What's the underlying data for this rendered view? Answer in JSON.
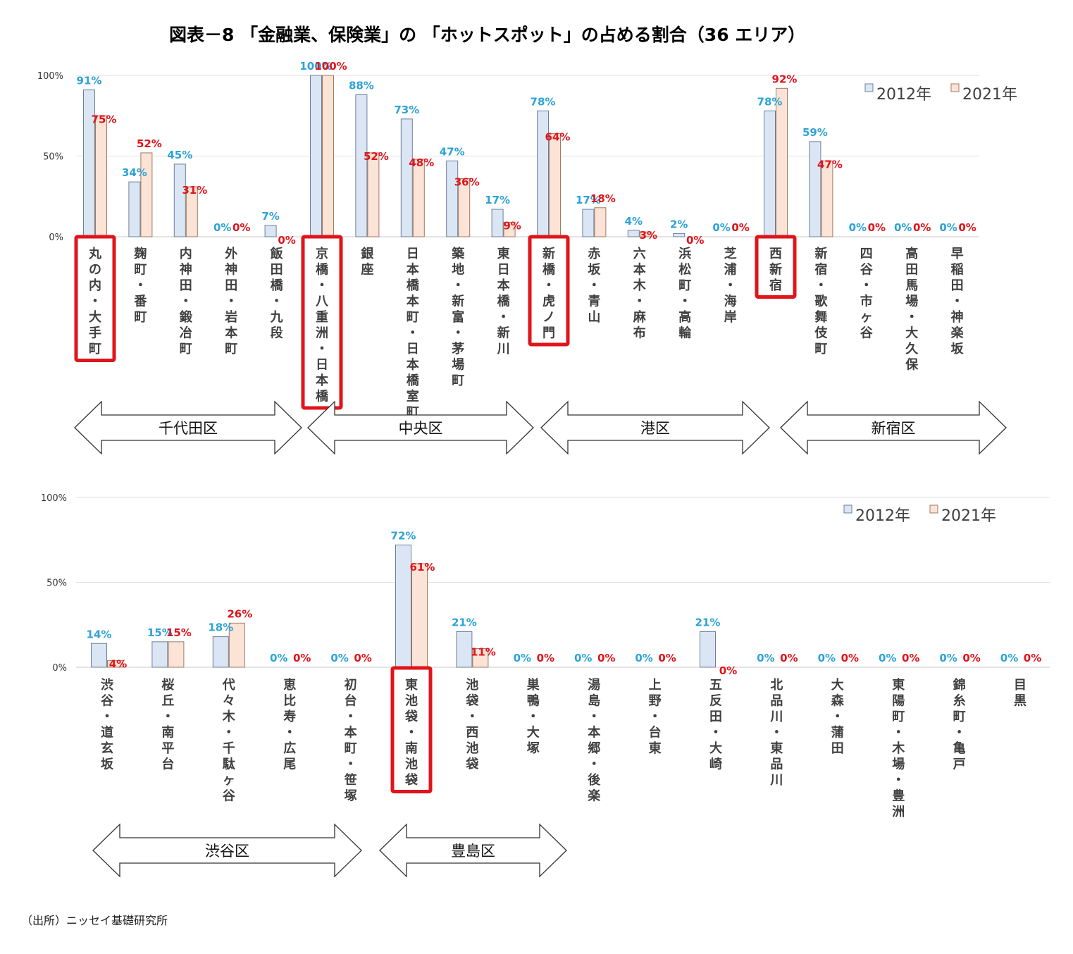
{
  "title": "図表－8 「金融業、保険業」の 「ホットスポット」の占める割合（36 エリア）",
  "source": "（出所）ニッセイ基礎研究所",
  "legend": [
    "2012年",
    "2021年"
  ],
  "y_ticks": [
    "100%",
    "50%",
    "0%"
  ],
  "colors": {
    "bar2012_fill": "#dbe6f4",
    "bar2012_stroke": "#6e7f99",
    "bar2021_fill": "#fbe3d6",
    "bar2021_stroke": "#a07a62",
    "label2012": "#2ea3d6",
    "label2021": "#e0141b",
    "highlight": "#e0141b"
  },
  "chart_data": [
    {
      "type": "bar",
      "categories": [
        "丸の内・大手町",
        "麹町・番町",
        "内神田・鍛冶町",
        "外神田・岩本町",
        "飯田橋・九段",
        "京橋・八重洲・日本橋",
        "銀座",
        "日本橋本町・日本橋室町",
        "築地・新富・茅場町",
        "東日本橋・新川",
        "新橋・虎ノ門",
        "赤坂・青山",
        "六本木・麻布",
        "浜松町・高輪",
        "芝浦・海岸",
        "西新宿",
        "新宿・歌舞伎町",
        "四谷・市ヶ谷",
        "高田馬場・大久保",
        "早稲田・神楽坂"
      ],
      "series": [
        {
          "name": "2012年",
          "values": [
            91,
            34,
            45,
            0,
            7,
            100,
            88,
            73,
            47,
            17,
            78,
            17,
            4,
            2,
            0,
            78,
            59,
            0,
            0,
            0
          ]
        },
        {
          "name": "2021年",
          "values": [
            75,
            52,
            31,
            0,
            0,
            100,
            52,
            48,
            36,
            9,
            64,
            18,
            3,
            0,
            0,
            92,
            47,
            0,
            0,
            0
          ]
        }
      ],
      "ylim": [
        0,
        100
      ],
      "y_unit": "%",
      "highlighted": [
        "丸の内・大手町",
        "京橋・八重洲・日本橋",
        "新橋・虎ノ門",
        "西新宿"
      ],
      "wards": [
        {
          "name": "千代田区",
          "from": 0,
          "to": 4
        },
        {
          "name": "中央区",
          "from": 5,
          "to": 9
        },
        {
          "name": "港区",
          "from": 10,
          "to": 14
        },
        {
          "name": "新宿区",
          "from": 15,
          "to": 19
        }
      ],
      "legend_position": "top-right"
    },
    {
      "type": "bar",
      "categories": [
        "渋谷・道玄坂",
        "桜丘・南平台",
        "代々木・千駄ヶ谷",
        "恵比寿・広尾",
        "初台・本町・笹塚",
        "東池袋・南池袋",
        "池袋・西池袋",
        "巣鴨・大塚",
        "湯島・本郷・後楽",
        "上野・台東",
        "五反田・大崎",
        "北品川・東品川",
        "大森・蒲田",
        "東陽町・木場・豊洲",
        "錦糸町・亀戸",
        "目黒"
      ],
      "series": [
        {
          "name": "2012年",
          "values": [
            14,
            15,
            18,
            0,
            0,
            72,
            21,
            0,
            0,
            0,
            21,
            0,
            0,
            0,
            0,
            0
          ]
        },
        {
          "name": "2021年",
          "values": [
            4,
            15,
            26,
            0,
            0,
            61,
            11,
            0,
            0,
            0,
            0,
            0,
            0,
            0,
            0,
            0
          ]
        }
      ],
      "ylim": [
        0,
        100
      ],
      "y_unit": "%",
      "highlighted": [
        "東池袋・南池袋"
      ],
      "wards": [
        {
          "name": "渋谷区",
          "from": 0,
          "to": 4
        },
        {
          "name": "豊島区",
          "from": 5,
          "to": 6
        }
      ],
      "legend_position": "top-right"
    }
  ]
}
